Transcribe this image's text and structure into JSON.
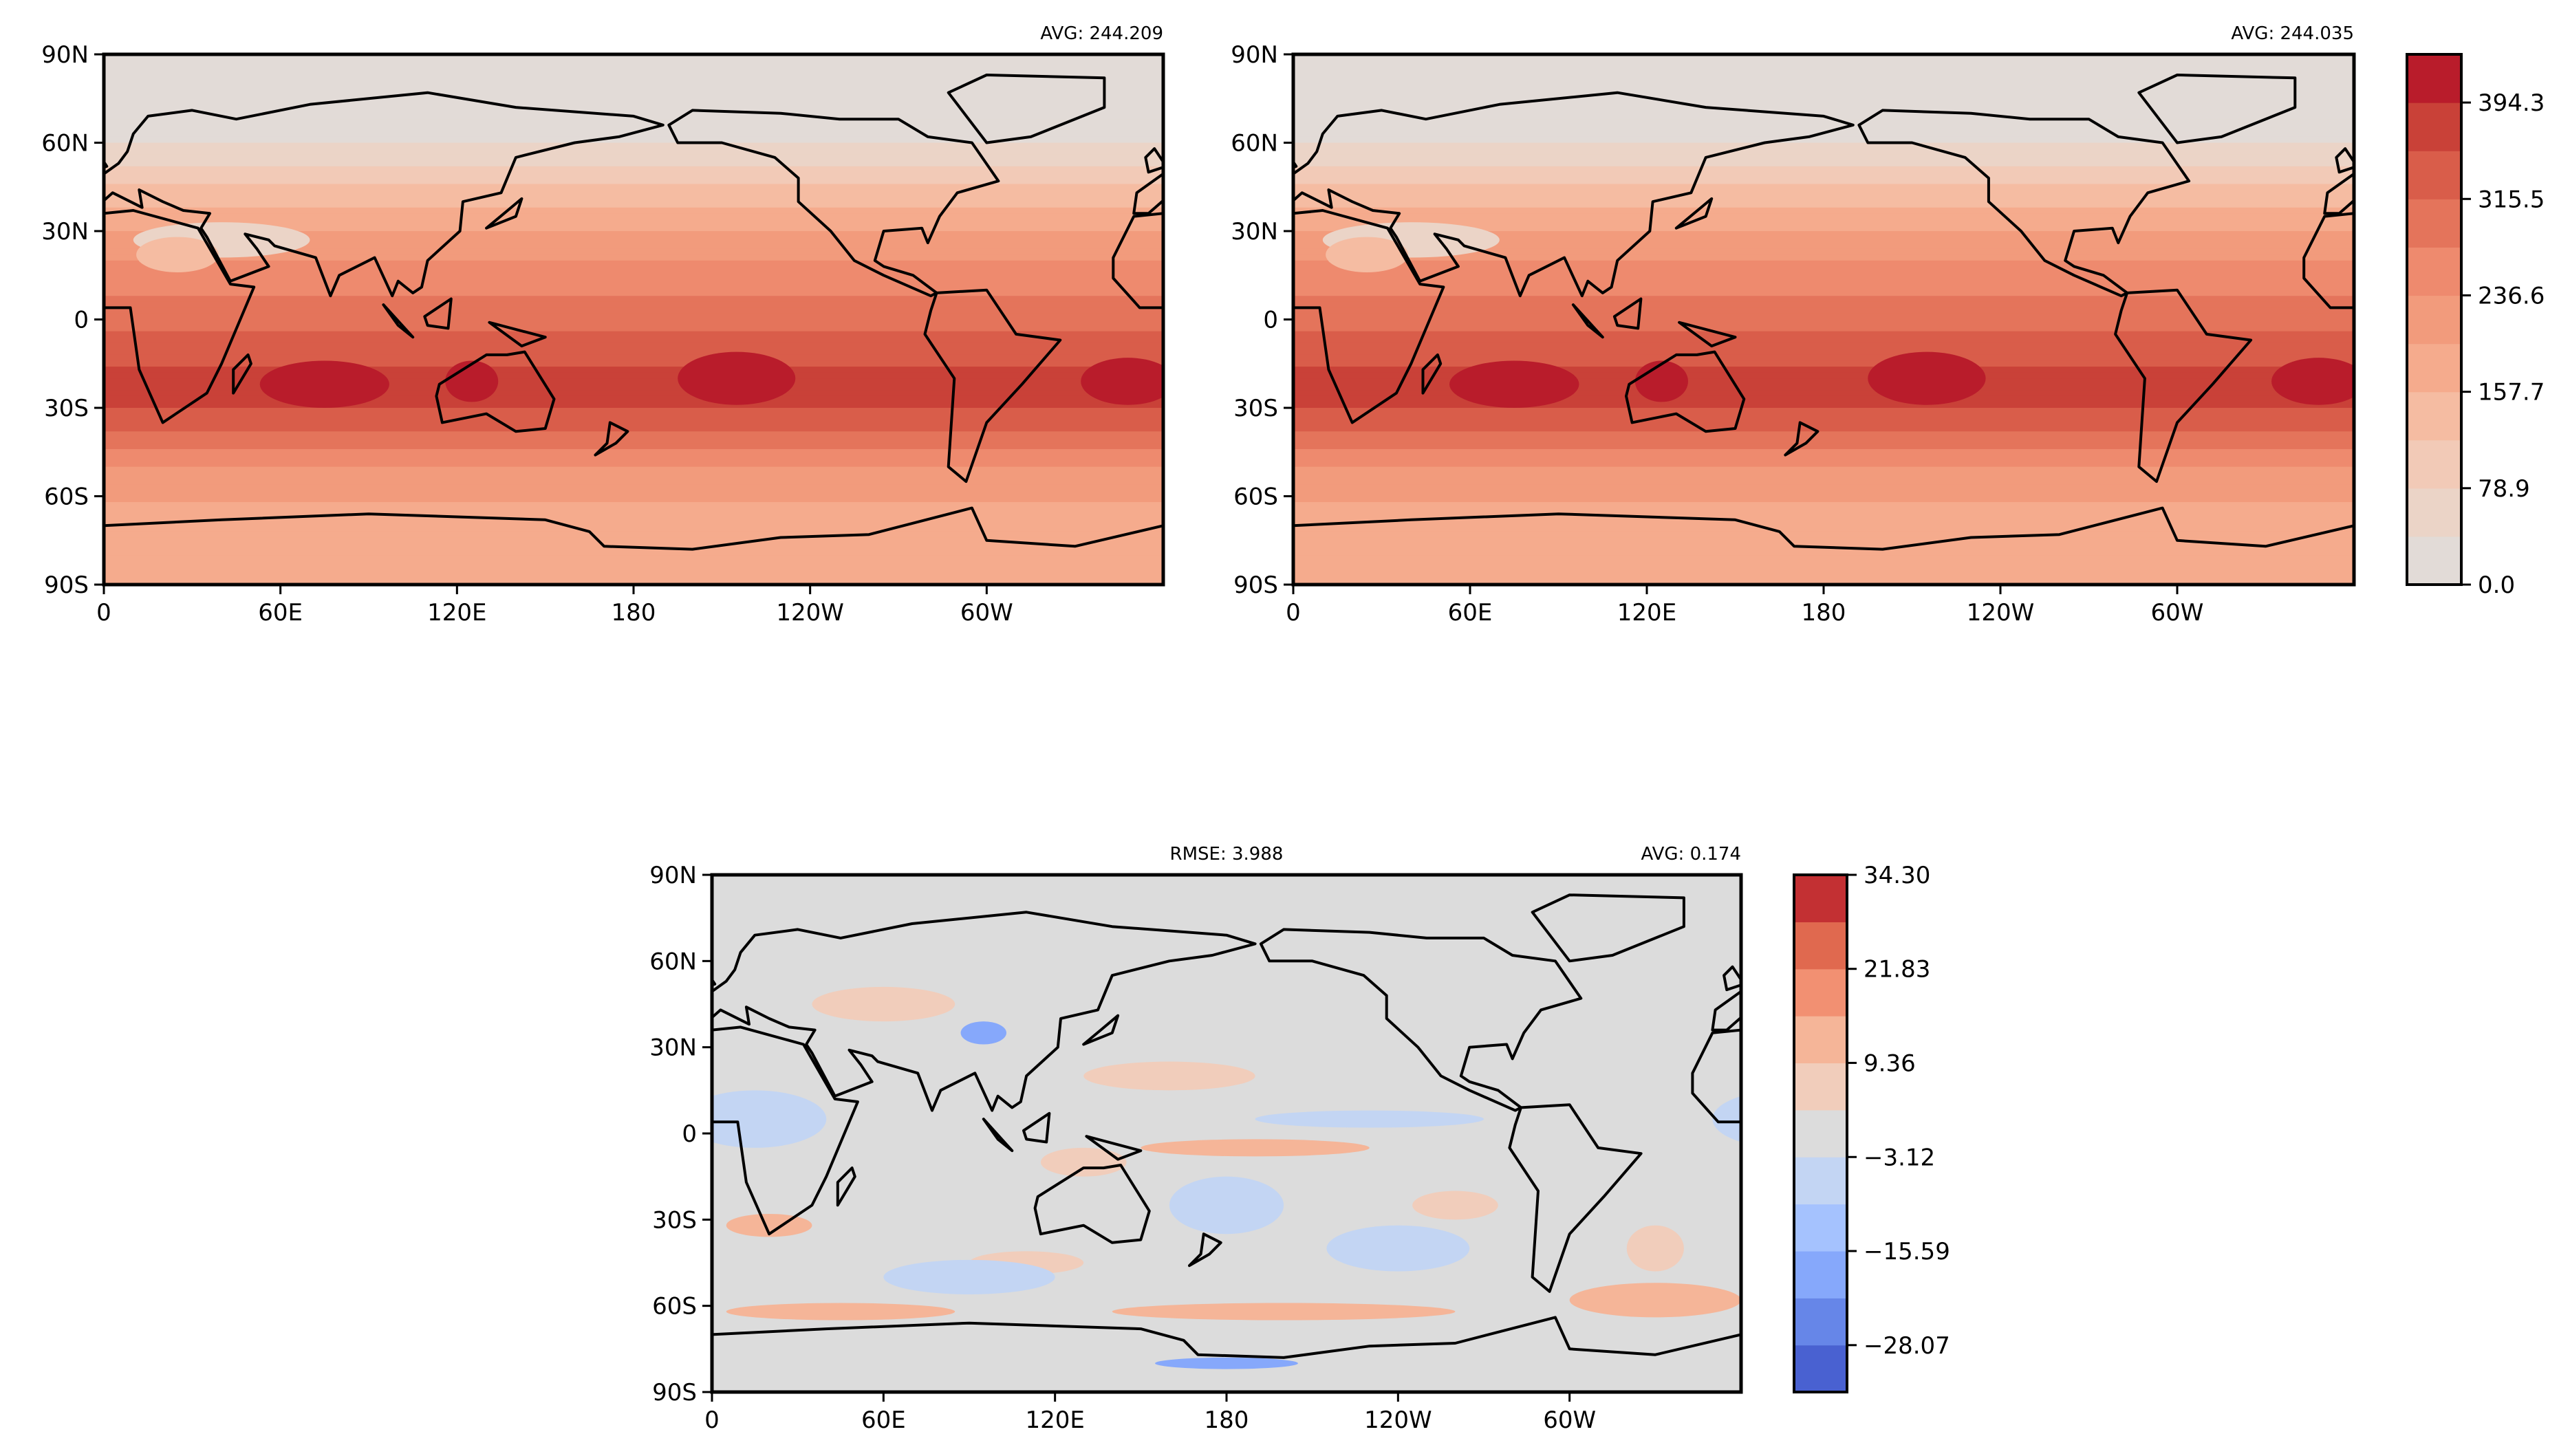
{
  "chart_data": [
    {
      "type": "heatmap",
      "panel": "top-left",
      "avg_label": "AVG: 244.209",
      "xticks": [
        "0",
        "60E",
        "120E",
        "180",
        "120W",
        "60W"
      ],
      "xtick_lons": [
        0,
        60,
        120,
        180,
        240,
        300
      ],
      "yticks": [
        "90N",
        "60N",
        "30N",
        "0",
        "30S",
        "60S",
        "90S"
      ],
      "ytick_lats": [
        90,
        60,
        30,
        0,
        -30,
        -60,
        -90
      ],
      "shared_colorbar": 0,
      "zonal_profile": {
        "lats": [
          90,
          80,
          70,
          60,
          50,
          40,
          30,
          20,
          10,
          0,
          -10,
          -20,
          -30,
          -40,
          -50,
          -60,
          -70,
          -80,
          -90
        ],
        "values": [
          15,
          15,
          20,
          35,
          95,
          150,
          195,
          235,
          270,
          300,
          335,
          370,
          355,
          300,
          240,
          200,
          180,
          170,
          170
        ]
      },
      "maxima": [
        [
          75,
          -22,
          22,
          8,
          425
        ],
        [
          125,
          -21,
          9,
          7,
          425
        ],
        [
          215,
          -20,
          20,
          9,
          425
        ],
        [
          348,
          -21,
          16,
          8,
          425
        ],
        [
          40,
          27,
          30,
          6,
          60
        ],
        [
          25,
          22,
          14,
          6,
          120
        ]
      ]
    },
    {
      "type": "heatmap",
      "panel": "top-right",
      "avg_label": "AVG: 244.035",
      "xticks": [
        "0",
        "60E",
        "120E",
        "180",
        "120W",
        "60W"
      ],
      "xtick_lons": [
        0,
        60,
        120,
        180,
        240,
        300
      ],
      "yticks": [
        "90N",
        "60N",
        "30N",
        "0",
        "30S",
        "60S",
        "90S"
      ],
      "ytick_lats": [
        90,
        60,
        30,
        0,
        -30,
        -60,
        -90
      ],
      "shared_colorbar": 0,
      "zonal_profile": {
        "lats": [
          90,
          80,
          70,
          60,
          50,
          40,
          30,
          20,
          10,
          0,
          -10,
          -20,
          -30,
          -40,
          -50,
          -60,
          -70,
          -80,
          -90
        ],
        "values": [
          15,
          15,
          20,
          35,
          95,
          150,
          195,
          235,
          270,
          300,
          335,
          370,
          355,
          300,
          240,
          200,
          180,
          170,
          170
        ]
      },
      "maxima": [
        [
          75,
          -22,
          22,
          8,
          425
        ],
        [
          125,
          -21,
          9,
          7,
          425
        ],
        [
          215,
          -20,
          20,
          9,
          425
        ],
        [
          348,
          -21,
          16,
          8,
          425
        ],
        [
          40,
          27,
          30,
          6,
          60
        ],
        [
          25,
          22,
          14,
          6,
          120
        ]
      ]
    },
    {
      "type": "heatmap",
      "panel": "bottom-difference",
      "rmse_label": "RMSE: 3.988",
      "avg_label": "AVG: 0.174",
      "xticks": [
        "0",
        "60E",
        "120E",
        "180",
        "120W",
        "60W"
      ],
      "xtick_lons": [
        0,
        60,
        120,
        180,
        240,
        300
      ],
      "yticks": [
        "90N",
        "60N",
        "30N",
        "0",
        "30S",
        "60S",
        "90S"
      ],
      "ytick_lats": [
        90,
        60,
        30,
        0,
        -30,
        -60,
        -90
      ],
      "shared_colorbar": 1,
      "zonal_profile": {
        "lats": [
          90,
          -90
        ],
        "values": [
          0,
          0
        ]
      },
      "maxima": [
        [
          20,
          -32,
          15,
          4,
          12
        ],
        [
          110,
          -45,
          20,
          4,
          8
        ],
        [
          45,
          -62,
          40,
          3,
          14
        ],
        [
          200,
          -62,
          60,
          3,
          10
        ],
        [
          330,
          -58,
          30,
          6,
          14
        ],
        [
          180,
          -80,
          25,
          2,
          -20
        ],
        [
          90,
          -50,
          30,
          6,
          -5
        ],
        [
          240,
          -40,
          25,
          8,
          -5
        ],
        [
          180,
          -25,
          20,
          10,
          -6
        ],
        [
          190,
          -5,
          40,
          3,
          10
        ],
        [
          230,
          5,
          40,
          3,
          -6
        ],
        [
          15,
          5,
          25,
          10,
          -6
        ],
        [
          95,
          35,
          8,
          4,
          -18
        ],
        [
          60,
          45,
          25,
          6,
          6
        ],
        [
          160,
          20,
          30,
          5,
          6
        ],
        [
          260,
          -25,
          15,
          5,
          6
        ],
        [
          330,
          -40,
          10,
          8,
          8
        ],
        [
          130,
          -10,
          15,
          5,
          8
        ]
      ]
    }
  ],
  "colorbars": [
    {
      "tick_labels": [
        "0.0",
        "78.9",
        "157.7",
        "236.6",
        "315.5",
        "394.3"
      ],
      "tick_values": [
        0,
        78.86,
        157.72,
        236.58,
        315.44,
        394.3
      ],
      "min": 0,
      "max": 433.73,
      "colors": [
        "#e2dbd7",
        "#ebd4c7",
        "#f2cab7",
        "#f5bca2",
        "#f5ab8d",
        "#f29b7c",
        "#ee8a6e",
        "#e4745b",
        "#d95d4a",
        "#c94138",
        "#b91c2b"
      ]
    },
    {
      "tick_labels": [
        "−28.07",
        "−15.59",
        "−3.12",
        "9.36",
        "21.83",
        "34.30"
      ],
      "tick_values": [
        -28.07,
        -15.59,
        -3.12,
        9.36,
        21.83,
        34.3
      ],
      "min": -34.29,
      "max": 34.3,
      "colors": [
        "#4961d1",
        "#6686e8",
        "#86a8fb",
        "#a5c2fe",
        "#c3d5f3",
        "#dcdcdc",
        "#f1cdbb",
        "#f5b598",
        "#f29072",
        "#e0694f",
        "#c33033"
      ]
    }
  ]
}
